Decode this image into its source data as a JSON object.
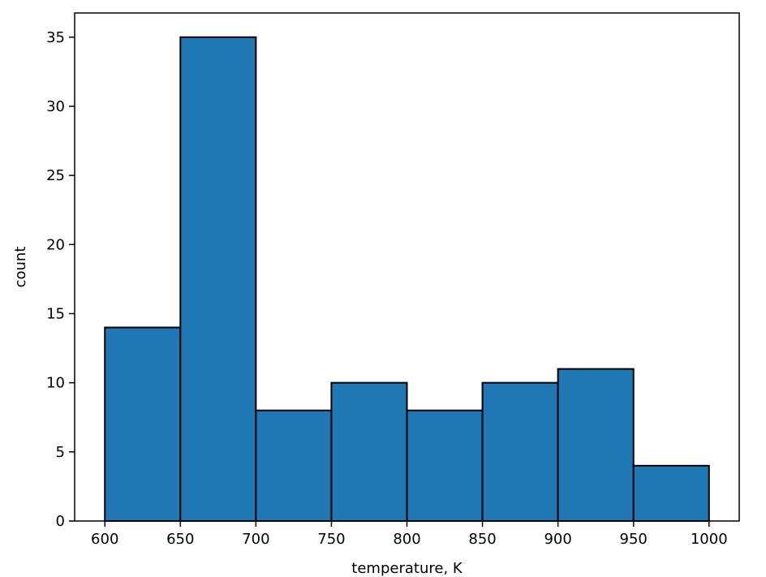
{
  "chart_data": {
    "type": "bar",
    "subtype": "histogram",
    "title": "",
    "xlabel": "temperature, K",
    "ylabel": "count",
    "bin_edges": [
      600,
      650,
      700,
      750,
      800,
      850,
      900,
      950,
      1000
    ],
    "values": [
      14,
      35,
      8,
      10,
      8,
      10,
      11,
      4
    ],
    "xlim": [
      580,
      1020
    ],
    "ylim": [
      0,
      36.75
    ],
    "x_ticks": [
      600,
      650,
      700,
      750,
      800,
      850,
      900,
      950,
      1000
    ],
    "y_ticks": [
      0,
      5,
      10,
      15,
      20,
      25,
      30,
      35
    ],
    "grid": false,
    "legend": "none",
    "bar_color": "#1f77b4",
    "edge_color": "#000000"
  }
}
